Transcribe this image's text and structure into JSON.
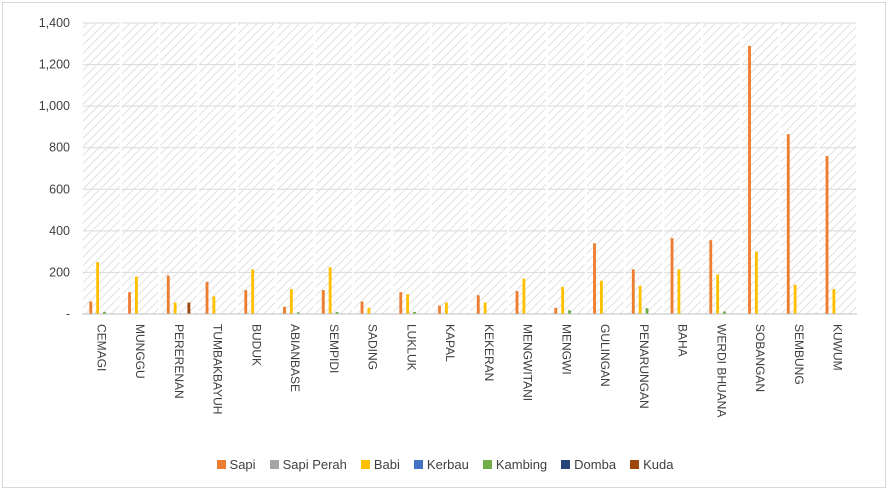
{
  "chart_data": {
    "type": "bar",
    "categories": [
      "CEMAGI",
      "MUNGGU",
      "PERERENAN",
      "TUMBAKBAYUH",
      "BUDUK",
      "ABIANBASE",
      "SEMPIDI",
      "SADING",
      "LUKLUK",
      "KAPAL",
      "KEKERAN",
      "MENGWITANI",
      "MENGWI",
      "GULINGAN",
      "PENARUNGAN",
      "BAHA",
      "WERDI BHUANA",
      "SOBANGAN",
      "SEMBUNG",
      "KUWUM"
    ],
    "series": [
      {
        "name": "Sapi",
        "color": "#ED7D31",
        "values": [
          60,
          105,
          185,
          155,
          115,
          35,
          115,
          60,
          105,
          40,
          90,
          110,
          30,
          340,
          215,
          365,
          355,
          1290,
          865,
          760
        ]
      },
      {
        "name": "Sapi Perah",
        "color": "#A5A5A5",
        "values": [
          0,
          0,
          0,
          0,
          0,
          0,
          0,
          0,
          0,
          0,
          0,
          0,
          0,
          0,
          0,
          0,
          0,
          0,
          0,
          0
        ]
      },
      {
        "name": "Babi",
        "color": "#FFC000",
        "values": [
          250,
          180,
          55,
          85,
          215,
          120,
          225,
          30,
          95,
          55,
          55,
          170,
          130,
          160,
          135,
          215,
          190,
          300,
          140,
          120
        ]
      },
      {
        "name": "Kerbau",
        "color": "#4472C4",
        "values": [
          0,
          0,
          0,
          0,
          0,
          0,
          0,
          0,
          0,
          0,
          0,
          0,
          0,
          0,
          0,
          0,
          0,
          0,
          0,
          0
        ]
      },
      {
        "name": "Kambing",
        "color": "#70AD47",
        "values": [
          10,
          0,
          0,
          0,
          0,
          8,
          10,
          0,
          10,
          0,
          0,
          0,
          18,
          0,
          28,
          0,
          12,
          0,
          0,
          0
        ]
      },
      {
        "name": "Domba",
        "color": "#264478",
        "values": [
          0,
          0,
          0,
          0,
          0,
          0,
          0,
          0,
          0,
          0,
          0,
          0,
          0,
          0,
          0,
          0,
          0,
          0,
          0,
          0
        ]
      },
      {
        "name": "Kuda",
        "color": "#9E480E",
        "values": [
          0,
          0,
          55,
          0,
          0,
          0,
          0,
          0,
          0,
          0,
          0,
          0,
          0,
          0,
          0,
          0,
          0,
          0,
          0,
          0
        ]
      }
    ],
    "yticks": [
      "-",
      "200",
      "400",
      "600",
      "800",
      "1,000",
      "1,200",
      "1,400"
    ],
    "ylim": [
      0,
      1400
    ],
    "grid": true,
    "legend_position": "bottom"
  }
}
